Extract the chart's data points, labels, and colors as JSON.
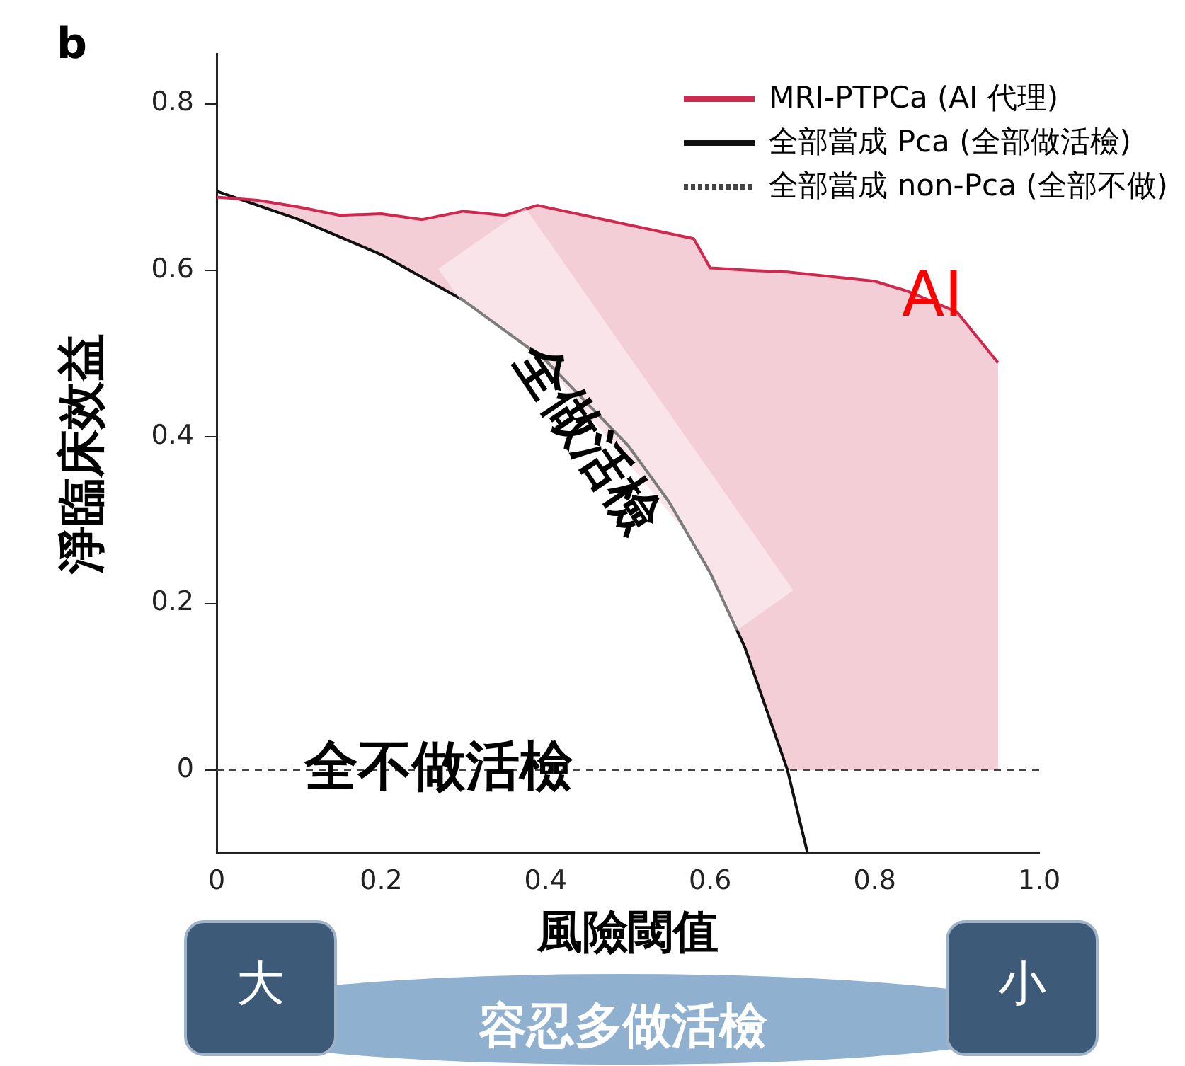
{
  "chart_data": {
    "type": "line",
    "xlabel": "風險閾值",
    "ylabel": "淨臨床效益",
    "xlim": [
      0,
      1
    ],
    "ylim": [
      -0.1,
      0.86
    ],
    "xticks": [
      0,
      0.2,
      0.4,
      0.6,
      0.8,
      {
        "value": 1,
        "label": "1.0"
      }
    ],
    "yticks": [
      0,
      0.2,
      0.4,
      0.6,
      0.8
    ],
    "grid": false,
    "legend": "top right",
    "marker": "none",
    "series": [
      {
        "name": "MRI-PTPCa (AI 代理)",
        "color": "#d0294f",
        "line_style": "solid",
        "x": [
          0,
          0.05,
          0.1,
          0.15,
          0.2,
          0.25,
          0.3,
          0.35,
          0.39,
          0.58,
          0.6,
          0.65,
          0.694,
          0.8,
          0.84,
          0.9,
          0.95
        ],
        "values": [
          0.688,
          0.684,
          0.676,
          0.666,
          0.668,
          0.661,
          0.671,
          0.666,
          0.678,
          0.638,
          0.603,
          0.6,
          0.598,
          0.587,
          0.575,
          0.55,
          0.489
        ],
        "lower": [
          0.688,
          0.68,
          0.661,
          0.641,
          0.619,
          0.594,
          0.564,
          0.531,
          0.5,
          0.274,
          0.237,
          0.128,
          0,
          0,
          0,
          0,
          0
        ],
        "upper": [
          0.688,
          0.684,
          0.676,
          0.666,
          0.668,
          0.661,
          0.671,
          0.666,
          0.678,
          0.638,
          0.603,
          0.6,
          0.598,
          0.587,
          0.575,
          0.55,
          0.489
        ]
      },
      {
        "name": "全部當成 Pca (全部做活檢)",
        "color": "#111111",
        "line_style": "solid",
        "x": [
          0,
          0.1,
          0.2,
          0.3,
          0.4,
          0.5,
          0.55,
          0.6,
          0.642,
          0.694,
          0.718
        ],
        "values": [
          0.695,
          0.661,
          0.619,
          0.564,
          0.492,
          0.39,
          0.322,
          0.237,
          0.148,
          0,
          -0.098
        ]
      },
      {
        "name": "全部當成 non-Pca (全部不做)",
        "color": "#444444",
        "line_style": "dashed",
        "x": [
          0,
          1
        ],
        "values": [
          0,
          0
        ]
      }
    ],
    "annotations": [
      {
        "text": "AI",
        "x": 0.87,
        "y": 0.565
      },
      {
        "text": "全不做活檢",
        "x": 0.27,
        "y": 0
      },
      "全做活檢",
      "b",
      "大",
      "小",
      "容忍多做活檢"
    ]
  }
}
